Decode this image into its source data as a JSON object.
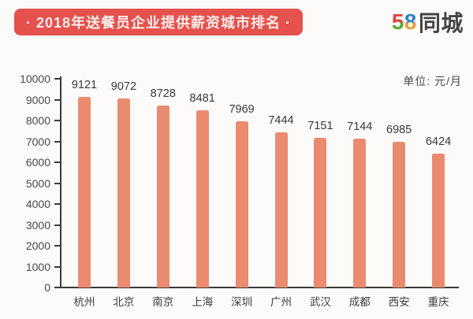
{
  "header": {
    "banner": "· 2018年送餐员企业提供薪资城市排名 ·",
    "logo": {
      "five": "5",
      "eight": "8",
      "suffix": "同城"
    }
  },
  "chart_data": {
    "type": "bar",
    "title": "2018年送餐员企业提供薪资城市排名",
    "unit_label": "单位: 元/月",
    "categories": [
      "杭州",
      "北京",
      "南京",
      "上海",
      "深圳",
      "广州",
      "武汉",
      "成都",
      "西安",
      "重庆"
    ],
    "values": [
      9121,
      9072,
      8728,
      8481,
      7969,
      7444,
      7151,
      7144,
      6985,
      6424
    ],
    "xlabel": "",
    "ylabel": "",
    "ylim": [
      0,
      10000
    ],
    "yticks": [
      0,
      1000,
      2000,
      3000,
      4000,
      5000,
      6000,
      7000,
      8000,
      9000,
      10000
    ],
    "grid": false,
    "legend": "none",
    "bar_color": "#ea8b70"
  },
  "colors": {
    "banner_bg": "#e5514d",
    "banner_text": "#ffecea",
    "bar": "#ea8b70",
    "axis": "#3a3a3a",
    "background": "#fcfbfa"
  }
}
